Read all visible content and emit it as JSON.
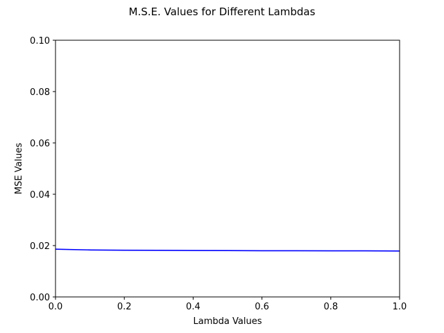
{
  "chart_data": {
    "type": "line",
    "title": "M.S.E. Values for Different Lambdas",
    "xlabel": "Lambda Values",
    "ylabel": "MSE Values",
    "xlim": [
      0.0,
      1.0
    ],
    "ylim": [
      0.0,
      0.1
    ],
    "xticks": [
      "0.0",
      "0.2",
      "0.4",
      "0.6",
      "0.8",
      "1.0"
    ],
    "yticks": [
      "0.00",
      "0.02",
      "0.04",
      "0.06",
      "0.08",
      "0.10"
    ],
    "grid": false,
    "series": [
      {
        "color": "#0000ff",
        "x": [
          0.0,
          0.1,
          0.2,
          0.3,
          0.4,
          0.5,
          0.6,
          0.7,
          0.8,
          0.9,
          1.0
        ],
        "y": [
          0.0186,
          0.0183,
          0.0182,
          0.01815,
          0.0181,
          0.01805,
          0.018,
          0.018,
          0.01795,
          0.01795,
          0.0179
        ]
      }
    ]
  }
}
